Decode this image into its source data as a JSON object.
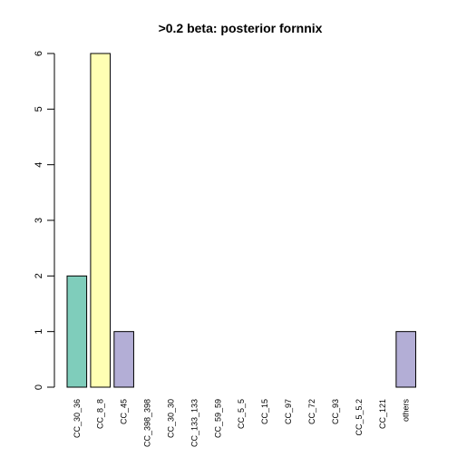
{
  "chart_data": {
    "type": "bar",
    "title": ">0.2 beta:  posterior fornnix",
    "xlabel": "",
    "ylabel": "",
    "ylim": [
      0,
      6
    ],
    "y_ticks": [
      0,
      1,
      2,
      3,
      4,
      5,
      6
    ],
    "categories": [
      "CC_30_36",
      "CC_8_8",
      "CC_45",
      "CC_398_398",
      "CC_30_30",
      "CC_133_133",
      "CC_59_59",
      "CC_5_5",
      "CC_15",
      "CC_97",
      "CC_72",
      "CC_93",
      "CC_5_5.2",
      "CC_121",
      "others"
    ],
    "values": [
      2,
      6,
      1,
      0,
      0,
      0,
      0,
      0,
      0,
      0,
      0,
      0,
      0,
      0,
      1
    ],
    "colors": [
      "#7FCDBB",
      "#FFFFB3",
      "#B3AED6",
      "#B3AED6",
      "#B3AED6",
      "#B3AED6",
      "#B3AED6",
      "#B3AED6",
      "#B3AED6",
      "#B3AED6",
      "#B3AED6",
      "#B3AED6",
      "#B3AED6",
      "#B3AED6",
      "#B3AED6"
    ],
    "grid": false,
    "legend": "none"
  }
}
